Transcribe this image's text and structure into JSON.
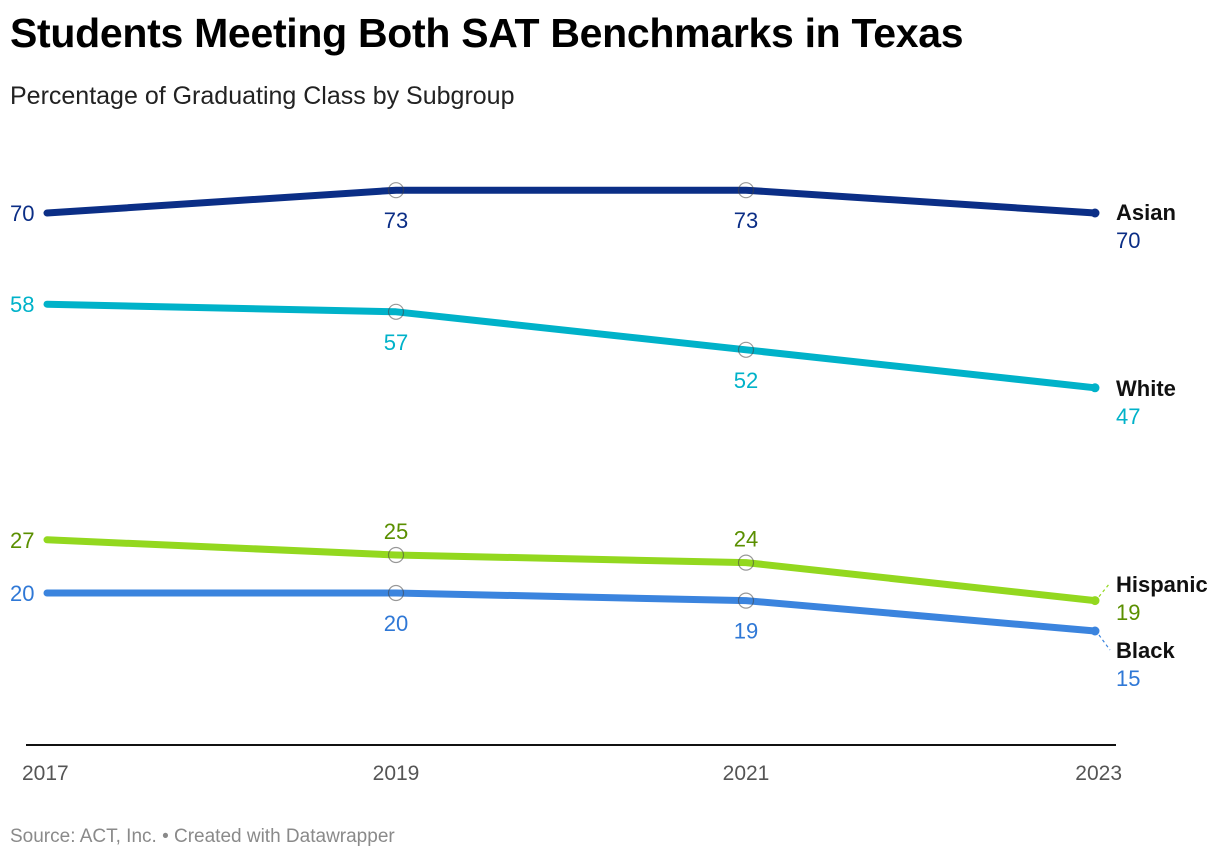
{
  "chart_data": {
    "type": "line",
    "title": "Students Meeting Both SAT Benchmarks in Texas",
    "subtitle": "Percentage of Graduating Class by Subgroup",
    "x": [
      "2017",
      "2019",
      "2021",
      "2023"
    ],
    "ylim": [
      5,
      80
    ],
    "grid": false,
    "legend": "direct labels at line ends (right)",
    "series": [
      {
        "name": "Asian",
        "values": [
          70,
          73,
          73,
          70
        ],
        "color": "#0b2e86"
      },
      {
        "name": "White",
        "values": [
          58,
          57,
          52,
          47
        ],
        "color": "#00b2c9"
      },
      {
        "name": "Hispanic",
        "values": [
          27,
          25,
          24,
          19
        ],
        "color": "#93d81f",
        "label_color": "#5a8f00"
      },
      {
        "name": "Black",
        "values": [
          20,
          20,
          19,
          15
        ],
        "color": "#3b84de",
        "label_color": "#2f78d6"
      }
    ]
  },
  "source": "Source: ACT, Inc. • Created with Datawrapper"
}
